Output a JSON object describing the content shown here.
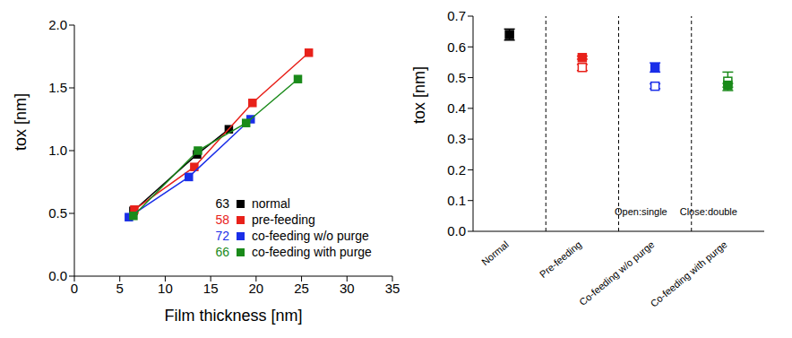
{
  "chart_data": [
    {
      "type": "scatter",
      "xlabel": "Film thickness [nm]",
      "ylabel": "tox [nm]",
      "xlim": [
        0,
        35
      ],
      "xticks": [
        0,
        5,
        10,
        15,
        20,
        25,
        30,
        35
      ],
      "ylim": [
        0,
        2
      ],
      "yticks": [
        {
          "value": 0,
          "label": "0.0"
        },
        0.5,
        {
          "value": 1,
          "label": "1.0"
        },
        1.5,
        {
          "value": 2,
          "label": "2.0"
        }
      ],
      "legend": "lower right",
      "marker": "square",
      "line_style": "solid",
      "series": [
        {
          "name": "normal",
          "legend_value": 63,
          "color": "#000000",
          "x": [
            6.5,
            13.5,
            17.0
          ],
          "values": [
            0.52,
            0.97,
            1.17
          ]
        },
        {
          "name": "pre-feeding",
          "legend_value": 58,
          "color": "#e8211a",
          "x": [
            6.6,
            13.2,
            19.6,
            25.8
          ],
          "values": [
            0.53,
            0.87,
            1.38,
            1.78
          ]
        },
        {
          "name": "co-feeding w/o purge",
          "legend_value": 72,
          "color": "#1a2ee8",
          "x": [
            6.0,
            12.6,
            19.4
          ],
          "values": [
            0.47,
            0.79,
            1.25
          ]
        },
        {
          "name": "co-feeding with purge",
          "legend_value": 66,
          "color": "#1a8a1a",
          "x": [
            6.5,
            13.6,
            18.9,
            24.6
          ],
          "values": [
            0.48,
            1.0,
            1.22,
            1.57
          ]
        }
      ]
    },
    {
      "type": "scatter",
      "ylabel": "tox [nm]",
      "categories": [
        "Normal",
        "Pre-feeding",
        "Co-feeding w/o purge",
        "Co-feeding with purge"
      ],
      "ylim": [
        0,
        0.7
      ],
      "yticks": [
        {
          "value": 0,
          "label": "0.0"
        },
        0.1,
        0.2,
        0.3,
        0.4,
        0.5,
        0.6,
        0.7
      ],
      "colors": [
        "#000000",
        "#e8211a",
        "#1a2ee8",
        "#1a8a1a"
      ],
      "annotations": [
        "Open:single",
        "Close:double"
      ],
      "series": [
        {
          "marker": "open_square",
          "values": [
            null,
            0.533,
            0.472,
            0.488
          ],
          "errors": [
            null,
            0.01,
            0.008,
            0.03
          ]
        },
        {
          "marker": "square",
          "values": [
            0.64,
            0.565,
            0.533,
            0.475
          ],
          "errors": [
            0.018,
            0.005,
            0.015,
            0.006
          ]
        }
      ]
    }
  ]
}
